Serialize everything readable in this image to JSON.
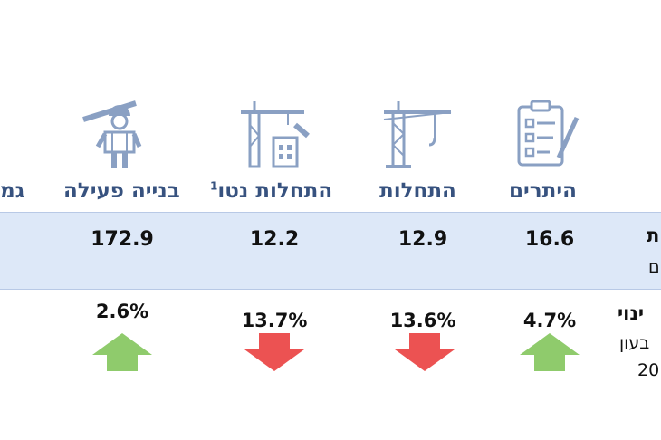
{
  "headers": {
    "permits": "היתרים",
    "starts": "התחלות",
    "net_starts": "התחלות נטו",
    "net_starts_sup": "1",
    "active_construction": "בנייה פעילה",
    "cut_left": "גמ"
  },
  "values": {
    "permits": "16.6",
    "starts": "12.9",
    "net_starts": "12.2",
    "active_construction": "172.9"
  },
  "changes": {
    "permits": "4.7%",
    "starts": "13.6%",
    "net_starts": "13.7%",
    "active_construction": "2.6%"
  },
  "directions": {
    "permits": "up",
    "starts": "down",
    "net_starts": "down",
    "active_construction": "up"
  },
  "right_edge": {
    "row1_title": "ת",
    "row1_sub": "ם",
    "row2_title": "ינוי",
    "row2_sub1": "בעון",
    "row2_sub2": "20"
  },
  "icons": {
    "permits": "checklist-icon",
    "starts": "crane-icon",
    "net_starts": "crane-building-icon",
    "active_construction": "construction-worker-icon"
  },
  "colors": {
    "header_text": "#37527f",
    "band": "#dde8f8",
    "icon": "#8aa0c3",
    "up": "#8fcb6c",
    "down": "#ec5252"
  }
}
